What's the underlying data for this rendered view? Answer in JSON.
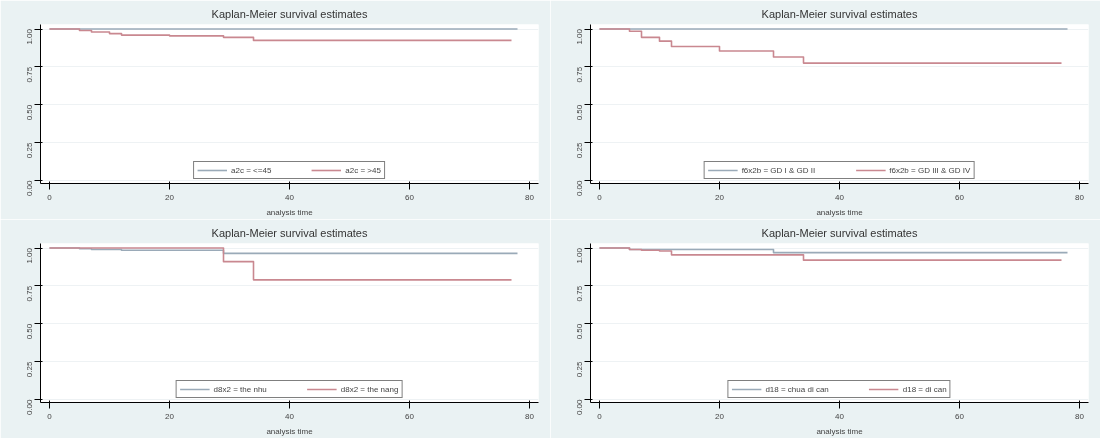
{
  "chart_data": [
    {
      "type": "step",
      "title": "Kaplan-Meier survival estimates",
      "xlabel": "analysis time",
      "xlim": [
        -1.5,
        81.5
      ],
      "xticks": [
        0,
        20,
        40,
        60,
        80
      ],
      "ylim": [
        -0.02,
        1.03
      ],
      "yticks": [
        {
          "value": 0,
          "label": "0.00"
        },
        {
          "value": 0.25,
          "label": "0.25"
        },
        {
          "value": 0.5,
          "label": "0.50"
        },
        {
          "value": 0.75,
          "label": "0.75"
        },
        {
          "value": 1,
          "label": "1.00"
        }
      ],
      "grid": "y",
      "legend": "bottom",
      "series": [
        {
          "name": "a2c = <=45",
          "color": "#9aaab8",
          "x": [
            0,
            78
          ],
          "values": [
            1,
            1
          ]
        },
        {
          "name": "a2c = >45",
          "color": "#c98890",
          "x": [
            0,
            5,
            7,
            10,
            12,
            20,
            29,
            34,
            77
          ],
          "values": [
            1,
            0.99,
            0.98,
            0.97,
            0.96,
            0.955,
            0.945,
            0.925,
            0.925
          ]
        }
      ]
    },
    {
      "type": "step",
      "title": "Kaplan-Meier survival estimates",
      "xlabel": "analysis time",
      "xlim": [
        -1.5,
        81.5
      ],
      "xticks": [
        0,
        20,
        40,
        60,
        80
      ],
      "ylim": [
        -0.02,
        1.03
      ],
      "yticks": [
        {
          "value": 0,
          "label": "0.00"
        },
        {
          "value": 0.25,
          "label": "0.25"
        },
        {
          "value": 0.5,
          "label": "0.50"
        },
        {
          "value": 0.75,
          "label": "0.75"
        },
        {
          "value": 1,
          "label": "1.00"
        }
      ],
      "grid": "y",
      "legend": "bottom",
      "series": [
        {
          "name": "f6x2b = GD I & GD II",
          "color": "#9aaab8",
          "x": [
            0,
            78
          ],
          "values": [
            1,
            1
          ]
        },
        {
          "name": "f6x2b = GD III & GD IV",
          "color": "#c98890",
          "x": [
            0,
            5,
            7,
            10,
            12,
            20,
            29,
            34,
            77
          ],
          "values": [
            1,
            0.985,
            0.945,
            0.92,
            0.885,
            0.855,
            0.815,
            0.775,
            0.775
          ]
        }
      ]
    },
    {
      "type": "step",
      "title": "Kaplan-Meier survival estimates",
      "xlabel": "analysis time",
      "xlim": [
        -1.5,
        81.5
      ],
      "xticks": [
        0,
        20,
        40,
        60,
        80
      ],
      "ylim": [
        -0.02,
        1.03
      ],
      "yticks": [
        {
          "value": 0,
          "label": "0.00"
        },
        {
          "value": 0.25,
          "label": "0.25"
        },
        {
          "value": 0.5,
          "label": "0.50"
        },
        {
          "value": 0.75,
          "label": "0.75"
        },
        {
          "value": 1,
          "label": "1.00"
        }
      ],
      "grid": "y",
      "legend": "bottom",
      "series": [
        {
          "name": "d8x2 = the nhu",
          "color": "#9aaab8",
          "x": [
            0,
            5,
            7,
            12,
            29,
            78
          ],
          "values": [
            1,
            0.995,
            0.99,
            0.985,
            0.965,
            0.965
          ]
        },
        {
          "name": "d8x2 = the nang",
          "color": "#c98890",
          "x": [
            0,
            29,
            34,
            77
          ],
          "values": [
            1,
            0.91,
            0.79,
            0.79
          ]
        }
      ]
    },
    {
      "type": "step",
      "title": "Kaplan-Meier survival estimates",
      "xlabel": "analysis time",
      "xlim": [
        -1.5,
        81.5
      ],
      "xticks": [
        0,
        20,
        40,
        60,
        80
      ],
      "ylim": [
        -0.02,
        1.03
      ],
      "yticks": [
        {
          "value": 0,
          "label": "0.00"
        },
        {
          "value": 0.25,
          "label": "0.25"
        },
        {
          "value": 0.5,
          "label": "0.50"
        },
        {
          "value": 0.75,
          "label": "0.75"
        },
        {
          "value": 1,
          "label": "1.00"
        }
      ],
      "grid": "y",
      "legend": "bottom",
      "series": [
        {
          "name": "d18 = chua di can",
          "color": "#9aaab8",
          "x": [
            0,
            5,
            29,
            78
          ],
          "values": [
            1,
            0.99,
            0.97,
            0.97
          ]
        },
        {
          "name": "d18 = di can",
          "color": "#c98890",
          "x": [
            0,
            5,
            7,
            10,
            12,
            34,
            77
          ],
          "values": [
            1,
            0.99,
            0.985,
            0.98,
            0.955,
            0.92,
            0.92
          ]
        }
      ]
    }
  ]
}
